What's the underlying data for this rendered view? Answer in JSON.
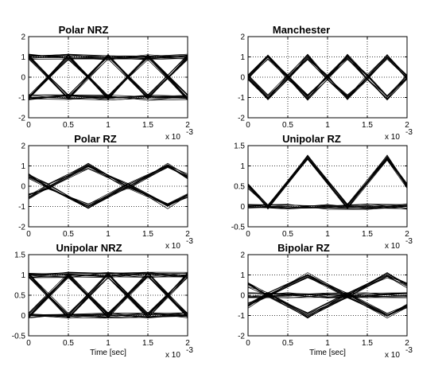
{
  "chart_data": [
    {
      "type": "line",
      "title": "Polar NRZ",
      "xlabel": "",
      "xlim": [
        0,
        2
      ],
      "ylim": [
        -2,
        2
      ],
      "x_ticks": [
        "0",
        "0.5",
        "1",
        "1.5",
        "2"
      ],
      "y_ticks": [
        "-2",
        "-1",
        "0",
        "1",
        "2"
      ],
      "x_scale_base": "x 10",
      "x_scale_exp": "-3",
      "grid": true,
      "series": [
        {
          "x": [
            0,
            0.5,
            1,
            1.5,
            2
          ],
          "values": [
            1,
            -1,
            1,
            -1,
            1
          ]
        },
        {
          "x": [
            0,
            0.5,
            1,
            1.5,
            2
          ],
          "values": [
            -1,
            1,
            -1,
            1,
            -1
          ]
        },
        {
          "x": [
            0,
            0.5,
            1,
            1.5,
            2
          ],
          "values": [
            1,
            1,
            1,
            1,
            1
          ]
        },
        {
          "x": [
            0,
            0.5,
            1,
            1.5,
            2
          ],
          "values": [
            -1,
            -1,
            -1,
            -1,
            -1
          ]
        }
      ]
    },
    {
      "type": "line",
      "title": "Manchester",
      "xlabel": "",
      "xlim": [
        0,
        2
      ],
      "ylim": [
        -2,
        2
      ],
      "x_ticks": [
        "0",
        "0.5",
        "1",
        "1.5",
        "2"
      ],
      "y_ticks": [
        "-2",
        "-1",
        "0",
        "1",
        "2"
      ],
      "x_scale_base": "x 10",
      "x_scale_exp": "-3",
      "grid": true,
      "series": [
        {
          "x": [
            0,
            0.25,
            0.5,
            0.75,
            1,
            1.25,
            1.5,
            1.75,
            2
          ],
          "values": [
            0,
            1,
            0,
            -1,
            0,
            1,
            0,
            -1,
            0
          ]
        },
        {
          "x": [
            0,
            0.25,
            0.5,
            0.75,
            1,
            1.25,
            1.5,
            1.75,
            2
          ],
          "values": [
            0,
            -1,
            0,
            1,
            0,
            -1,
            0,
            1,
            0
          ]
        }
      ]
    },
    {
      "type": "line",
      "title": "Polar RZ",
      "xlabel": "",
      "xlim": [
        0,
        2
      ],
      "ylim": [
        -2,
        2
      ],
      "x_ticks": [
        "0",
        "0.5",
        "1",
        "1.5",
        "2"
      ],
      "y_ticks": [
        "-2",
        "-1",
        "0",
        "1",
        "2"
      ],
      "x_scale_base": "x 10",
      "x_scale_exp": "-3",
      "grid": true,
      "series": [
        {
          "x": [
            0,
            0.25,
            0.75,
            1.25,
            1.75,
            2
          ],
          "values": [
            0.5,
            0,
            1,
            0,
            1,
            0.5
          ]
        },
        {
          "x": [
            0,
            0.25,
            0.75,
            1.25,
            1.75,
            2
          ],
          "values": [
            -0.5,
            0,
            -1,
            0,
            -1,
            -0.5
          ]
        }
      ]
    },
    {
      "type": "line",
      "title": "Unipolar RZ",
      "xlabel": "",
      "xlim": [
        0,
        2
      ],
      "ylim": [
        -0.5,
        1.5
      ],
      "x_ticks": [
        "0",
        "0.5",
        "1",
        "1.5",
        "2"
      ],
      "y_ticks": [
        "-0.5",
        "0",
        "0.5",
        "1",
        "1.5"
      ],
      "x_scale_base": "x 10",
      "x_scale_exp": "-3",
      "grid": true,
      "series": [
        {
          "x": [
            0,
            0.25,
            0.75,
            1.25,
            1.75,
            2
          ],
          "values": [
            0.5,
            0,
            1.2,
            0,
            1.2,
            0.5
          ]
        },
        {
          "x": [
            0,
            0.5,
            1,
            1.5,
            2
          ],
          "values": [
            0,
            0,
            0,
            0,
            0
          ]
        }
      ]
    },
    {
      "type": "line",
      "title": "Unipolar NRZ",
      "xlabel": "Time [sec]",
      "xlim": [
        0,
        2
      ],
      "ylim": [
        -0.5,
        1.5
      ],
      "x_ticks": [
        "0",
        "0.5",
        "1",
        "1.5",
        "2"
      ],
      "y_ticks": [
        "-0.5",
        "0",
        "0.5",
        "1",
        "1.5"
      ],
      "x_scale_base": "x 10",
      "x_scale_exp": "-3",
      "grid": true,
      "series": [
        {
          "x": [
            0,
            0.5,
            1,
            1.5,
            2
          ],
          "values": [
            1,
            0,
            1,
            0,
            1
          ]
        },
        {
          "x": [
            0,
            0.5,
            1,
            1.5,
            2
          ],
          "values": [
            0,
            1,
            0,
            1,
            0
          ]
        },
        {
          "x": [
            0,
            0.5,
            1,
            1.5,
            2
          ],
          "values": [
            1,
            1,
            1,
            1,
            1
          ]
        },
        {
          "x": [
            0,
            0.5,
            1,
            1.5,
            2
          ],
          "values": [
            0,
            0,
            0,
            0,
            0
          ]
        }
      ]
    },
    {
      "type": "line",
      "title": "Bipolar RZ",
      "xlabel": "Time [sec]",
      "xlim": [
        0,
        2
      ],
      "ylim": [
        -2,
        2
      ],
      "x_ticks": [
        "0",
        "0.5",
        "1",
        "1.5",
        "2"
      ],
      "y_ticks": [
        "-2",
        "-1",
        "0",
        "1",
        "2"
      ],
      "x_scale_base": "x 10",
      "x_scale_exp": "-3",
      "grid": true,
      "series": [
        {
          "x": [
            0,
            0.25,
            0.75,
            1.25,
            1.75,
            2
          ],
          "values": [
            0.5,
            0,
            1,
            0,
            1,
            0.5
          ]
        },
        {
          "x": [
            0,
            0.25,
            0.75,
            1.25,
            1.75,
            2
          ],
          "values": [
            -0.5,
            0,
            -1,
            0,
            -1,
            -0.5
          ]
        },
        {
          "x": [
            0,
            0.5,
            1,
            1.5,
            2
          ],
          "values": [
            0,
            0,
            0,
            0,
            0
          ]
        }
      ]
    }
  ]
}
